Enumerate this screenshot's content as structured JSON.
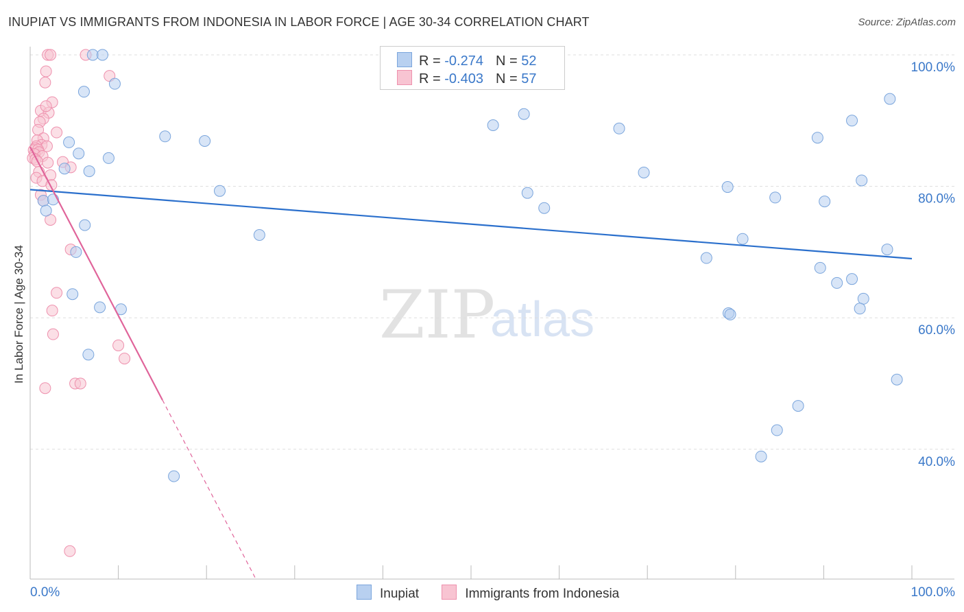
{
  "header": {
    "title": "INUPIAT VS IMMIGRANTS FROM INDONESIA IN LABOR FORCE | AGE 30-34 CORRELATION CHART",
    "source": "Source: ZipAtlas.com"
  },
  "watermark": {
    "zip": "ZIP",
    "atlas": "atlas"
  },
  "legend": {
    "rows": [
      {
        "r_label": "R = ",
        "r_value": "-0.274",
        "n_label": "N = ",
        "n_value": "52"
      },
      {
        "r_label": "R = ",
        "r_value": "-0.403",
        "n_label": "N = ",
        "n_value": "57"
      }
    ]
  },
  "colors": {
    "inupiat_fill": "#b8d0f0",
    "inupiat_stroke": "#7aa5dc",
    "inupiat_line": "#2a6fcc",
    "indonesia_fill": "#f8c4d2",
    "indonesia_stroke": "#ee90ad",
    "indonesia_line": "#e0649a",
    "axis_text": "#3a78c9",
    "grid": "#dddddd"
  },
  "chart_data": {
    "type": "scatter",
    "title": "INUPIAT VS IMMIGRANTS FROM INDONESIA IN LABOR FORCE | AGE 30-34 CORRELATION CHART",
    "xlabel": "",
    "ylabel": "In Labor Force | Age 30-34",
    "xlim": [
      0,
      100
    ],
    "ylim": [
      20,
      102
    ],
    "x_tick_labels": [
      "0.0%",
      "100.0%"
    ],
    "y_ticks": [
      100,
      80,
      60,
      40
    ],
    "y_tick_labels": [
      "100.0%",
      "80.0%",
      "60.0%",
      "40.0%"
    ],
    "grid": true,
    "legend_position": "top-center",
    "series": [
      {
        "name": "Inupiat",
        "r": -0.274,
        "n": 52,
        "trend": {
          "x": [
            0,
            100
          ],
          "y": [
            79.5,
            69.0
          ]
        },
        "points": [
          [
            7.1,
            100
          ],
          [
            8.2,
            100
          ],
          [
            9.6,
            95.6
          ],
          [
            6.1,
            94.4
          ],
          [
            15.3,
            87.6
          ],
          [
            19.8,
            86.9
          ],
          [
            5.5,
            85.0
          ],
          [
            4.4,
            86.7
          ],
          [
            8.9,
            84.3
          ],
          [
            3.9,
            82.7
          ],
          [
            6.7,
            82.3
          ],
          [
            21.5,
            79.3
          ],
          [
            1.5,
            77.8
          ],
          [
            2.6,
            78.0
          ],
          [
            1.8,
            76.3
          ],
          [
            6.2,
            74.1
          ],
          [
            26.0,
            72.6
          ],
          [
            5.2,
            70.0
          ],
          [
            4.8,
            63.6
          ],
          [
            7.9,
            61.6
          ],
          [
            10.3,
            61.3
          ],
          [
            6.6,
            54.4
          ],
          [
            16.3,
            35.9
          ],
          [
            52.5,
            89.3
          ],
          [
            56.0,
            91.0
          ],
          [
            56.4,
            79.0
          ],
          [
            58.3,
            76.7
          ],
          [
            66.8,
            88.8
          ],
          [
            69.6,
            82.1
          ],
          [
            79.1,
            79.9
          ],
          [
            90.1,
            77.7
          ],
          [
            84.5,
            78.3
          ],
          [
            80.8,
            72.0
          ],
          [
            76.7,
            69.1
          ],
          [
            89.3,
            87.4
          ],
          [
            93.2,
            90.0
          ],
          [
            97.5,
            93.3
          ],
          [
            94.3,
            80.9
          ],
          [
            97.2,
            70.4
          ],
          [
            89.6,
            67.6
          ],
          [
            91.5,
            65.3
          ],
          [
            93.2,
            65.9
          ],
          [
            94.5,
            62.9
          ],
          [
            94.1,
            61.4
          ],
          [
            79.2,
            60.7
          ],
          [
            79.4,
            60.5
          ],
          [
            98.3,
            50.6
          ],
          [
            87.1,
            46.6
          ],
          [
            84.7,
            42.9
          ],
          [
            82.9,
            38.9
          ]
        ]
      },
      {
        "name": "Immigrants from Indonesia",
        "r": -0.403,
        "n": 57,
        "trend": {
          "x": [
            0,
            15.0
          ],
          "y": [
            86.0,
            47.5
          ]
        },
        "trend_dashed": {
          "x": [
            15.0,
            25.5
          ],
          "y": [
            47.5,
            20.5
          ]
        },
        "points": [
          [
            2.0,
            100
          ],
          [
            2.3,
            100
          ],
          [
            6.3,
            100
          ],
          [
            1.8,
            97.5
          ],
          [
            1.7,
            95.8
          ],
          [
            9.0,
            96.8
          ],
          [
            2.5,
            92.8
          ],
          [
            1.2,
            91.5
          ],
          [
            2.1,
            91.2
          ],
          [
            1.8,
            92.2
          ],
          [
            1.5,
            90.3
          ],
          [
            1.1,
            89.8
          ],
          [
            0.9,
            88.6
          ],
          [
            3.0,
            88.2
          ],
          [
            1.5,
            87.3
          ],
          [
            0.8,
            87.0
          ],
          [
            1.3,
            86.3
          ],
          [
            1.9,
            86.1
          ],
          [
            0.7,
            86.1
          ],
          [
            0.6,
            85.8
          ],
          [
            0.4,
            85.5
          ],
          [
            0.9,
            85.6
          ],
          [
            1.0,
            85.2
          ],
          [
            0.5,
            84.9
          ],
          [
            1.4,
            84.6
          ],
          [
            0.3,
            84.3
          ],
          [
            0.6,
            84.1
          ],
          [
            0.8,
            83.8
          ],
          [
            2.0,
            83.6
          ],
          [
            3.7,
            83.7
          ],
          [
            4.6,
            82.9
          ],
          [
            1.0,
            82.2
          ],
          [
            2.3,
            81.7
          ],
          [
            0.7,
            81.3
          ],
          [
            1.4,
            80.8
          ],
          [
            2.4,
            80.2
          ],
          [
            1.2,
            78.7
          ],
          [
            1.5,
            77.8
          ],
          [
            2.3,
            74.9
          ],
          [
            4.6,
            70.4
          ],
          [
            3.0,
            63.8
          ],
          [
            2.5,
            61.1
          ],
          [
            2.6,
            57.5
          ],
          [
            10.0,
            55.8
          ],
          [
            10.7,
            53.8
          ],
          [
            5.1,
            50.0
          ],
          [
            5.7,
            50.0
          ],
          [
            1.7,
            49.3
          ],
          [
            4.5,
            24.5
          ]
        ]
      }
    ]
  },
  "bottom_legend": {
    "items": [
      "Inupiat",
      "Immigrants from Indonesia"
    ]
  }
}
